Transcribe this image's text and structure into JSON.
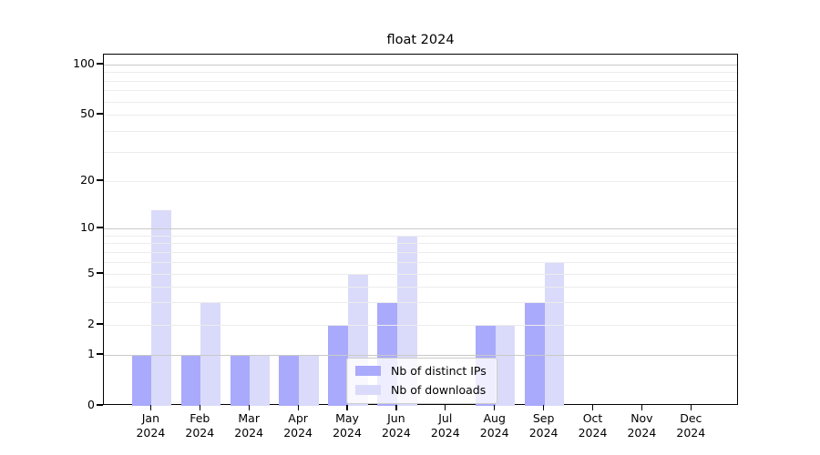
{
  "title": "float 2024",
  "legend": {
    "items": [
      {
        "label": "Nb of distinct IPs",
        "color": "#a9aafb"
      },
      {
        "label": "Nb of downloads",
        "color": "#dadbfa"
      }
    ]
  },
  "colors": {
    "distinct_ips_bar": "#a9aafb",
    "downloads_bar": "#dadbfa",
    "grid_minor": "#ececec",
    "grid_major": "#c9c9c9",
    "axis": "#000000"
  },
  "chart_data": {
    "type": "bar",
    "title": "float 2024",
    "categories": [
      "Jan",
      "Feb",
      "Mar",
      "Apr",
      "May",
      "Jun",
      "Jul",
      "Aug",
      "Sep",
      "Oct",
      "Nov",
      "Dec"
    ],
    "x_tick_year": "2024",
    "series": [
      {
        "name": "Nb of distinct IPs",
        "color": "#a9aafb",
        "values": [
          1,
          1,
          1,
          1,
          2,
          3,
          0,
          2,
          3,
          0,
          0,
          0
        ]
      },
      {
        "name": "Nb of downloads",
        "color": "#dadbfa",
        "values": [
          13,
          3,
          1,
          1,
          5,
          9,
          0,
          2,
          6,
          0,
          0,
          0
        ]
      }
    ],
    "y_ticks": [
      0,
      1,
      2,
      5,
      10,
      20,
      50,
      100
    ],
    "y_scale": "log-like (linear 0-1, logarithmic between labeled ticks)",
    "ylim": [
      0,
      100
    ],
    "xlabel": "",
    "ylabel": "",
    "grid": "horizontal minor log gridlines; darker lines at powers of 10",
    "legend_position": "bottom-center inside plot"
  }
}
